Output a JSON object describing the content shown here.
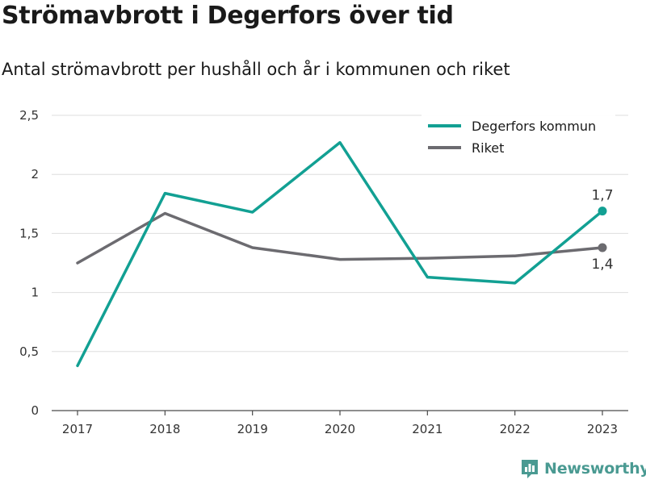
{
  "title": "Strömavbrott i Degerfors över tid",
  "subtitle": "Antal strömavbrott per hushåll och år i kommunen och riket",
  "brand": {
    "name": "Newsworthy",
    "icon": "bar-chart-logo-icon",
    "color": "#4a9a92"
  },
  "chart_data": {
    "type": "line",
    "x": [
      2017,
      2018,
      2019,
      2020,
      2021,
      2022,
      2023
    ],
    "x_tick_labels": [
      "2017",
      "2018",
      "2019",
      "2020",
      "2021",
      "2022",
      "2023"
    ],
    "ylim": [
      0,
      2.5
    ],
    "y_ticks": [
      0,
      0.5,
      1,
      1.5,
      2,
      2.5
    ],
    "y_tick_labels": [
      "0",
      "0,5",
      "1",
      "1,5",
      "2",
      "2,5"
    ],
    "grid": true,
    "legend_position": "top-right",
    "series": [
      {
        "name": "Degerfors kommun",
        "color": "#12a093",
        "values": [
          0.38,
          1.84,
          1.68,
          2.27,
          1.13,
          1.08,
          1.69
        ],
        "end_label": "1,7",
        "end_label_position": "above"
      },
      {
        "name": "Riket",
        "color": "#6c6b70",
        "values": [
          1.25,
          1.67,
          1.38,
          1.28,
          1.29,
          1.31,
          1.38
        ],
        "end_label": "1,4",
        "end_label_position": "below"
      }
    ]
  }
}
